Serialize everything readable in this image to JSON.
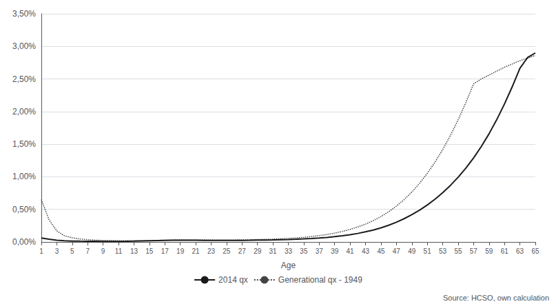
{
  "chart_data": {
    "type": "line",
    "x_label": "Age",
    "x": [
      1,
      2,
      3,
      4,
      5,
      6,
      7,
      8,
      9,
      10,
      11,
      12,
      13,
      14,
      15,
      16,
      17,
      18,
      19,
      20,
      21,
      22,
      23,
      24,
      25,
      26,
      27,
      28,
      29,
      30,
      31,
      32,
      33,
      34,
      35,
      36,
      37,
      38,
      39,
      40,
      41,
      42,
      43,
      44,
      45,
      46,
      47,
      48,
      49,
      50,
      51,
      52,
      53,
      54,
      55,
      56,
      57,
      58,
      59,
      60,
      61,
      62,
      63,
      64,
      65
    ],
    "series": [
      {
        "name": "2014 qx",
        "color": "#1a1a1a",
        "line_style": "solid",
        "values": [
          0.0006,
          0.00042,
          0.00026,
          0.00018,
          0.00014,
          0.00012,
          0.00011,
          0.0001,
          9e-05,
          9e-05,
          9e-05,
          0.0001,
          0.00012,
          0.00015,
          0.00018,
          0.00021,
          0.00024,
          0.00026,
          0.00027,
          0.00027,
          0.00026,
          0.00025,
          0.00024,
          0.00023,
          0.00023,
          0.00024,
          0.00025,
          0.00026,
          0.00028,
          0.0003,
          0.00032,
          0.00035,
          0.00038,
          0.00042,
          0.00047,
          0.00053,
          0.00061,
          0.0007,
          0.00081,
          0.00095,
          0.00111,
          0.00131,
          0.00155,
          0.00183,
          0.00217,
          0.00257,
          0.00303,
          0.00357,
          0.00418,
          0.00488,
          0.00567,
          0.00656,
          0.00756,
          0.00868,
          0.00993,
          0.01133,
          0.01289,
          0.01464,
          0.01659,
          0.01876,
          0.02116,
          0.02379,
          0.02664,
          0.0283,
          0.029
        ]
      },
      {
        "name": "Generational qx - 1949",
        "color": "#444444",
        "line_style": "dotted",
        "values": [
          0.0065,
          0.0034,
          0.0017,
          0.00095,
          0.00063,
          0.00045,
          0.00036,
          0.00029,
          0.00024,
          0.00021,
          0.00019,
          0.00018,
          0.00018,
          0.00019,
          0.00021,
          0.00024,
          0.00027,
          0.0003,
          0.00032,
          0.00033,
          0.00032,
          0.00031,
          0.0003,
          0.00029,
          0.00029,
          0.0003,
          0.00032,
          0.00034,
          0.00037,
          0.0004,
          0.00044,
          0.00049,
          0.00055,
          0.00062,
          0.00071,
          0.00083,
          0.00097,
          0.00115,
          0.00136,
          0.00162,
          0.00193,
          0.0023,
          0.00274,
          0.00327,
          0.0039,
          0.00463,
          0.0055,
          0.0065,
          0.00766,
          0.009,
          0.01052,
          0.01224,
          0.01418,
          0.01634,
          0.01874,
          0.02138,
          0.02425,
          0.025,
          0.0256,
          0.0262,
          0.0268,
          0.0273,
          0.0278,
          0.0282,
          0.0286
        ]
      }
    ],
    "xlim": [
      1,
      65
    ],
    "xticks": [
      1,
      3,
      5,
      7,
      9,
      11,
      13,
      15,
      17,
      19,
      21,
      23,
      25,
      27,
      29,
      31,
      33,
      35,
      37,
      39,
      41,
      43,
      45,
      47,
      49,
      51,
      53,
      55,
      57,
      59,
      61,
      63,
      65
    ],
    "ylim": [
      0.0,
      0.035
    ],
    "yticks": [
      {
        "value": 0.0,
        "label": "0,00%"
      },
      {
        "value": 0.005,
        "label": "0,50%"
      },
      {
        "value": 0.01,
        "label": "1,00%"
      },
      {
        "value": 0.015,
        "label": "1,50%"
      },
      {
        "value": 0.02,
        "label": "2,00%"
      },
      {
        "value": 0.025,
        "label": "2,50%"
      },
      {
        "value": 0.03,
        "label": "3,00%"
      },
      {
        "value": 0.035,
        "label": "3,50%"
      }
    ],
    "grid": true,
    "legend": "bottom",
    "annotations": [
      "Source: HCSO, own calculation"
    ]
  }
}
